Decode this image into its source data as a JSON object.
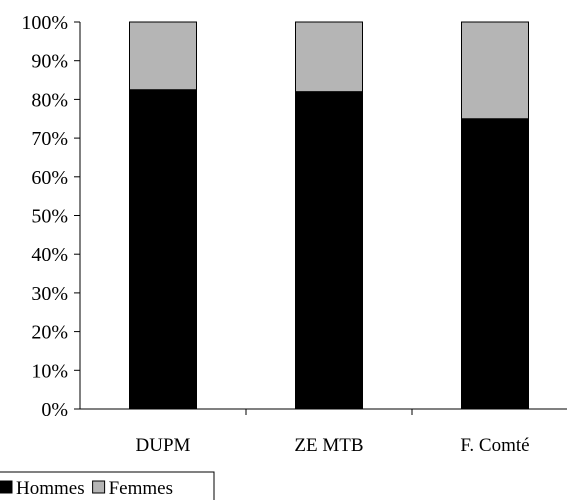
{
  "chart_data": {
    "type": "bar",
    "stacked": true,
    "percent": true,
    "title": "",
    "xlabel": "",
    "ylabel": "",
    "ylim": [
      0,
      100
    ],
    "yticks": [
      "0%",
      "10%",
      "20%",
      "30%",
      "40%",
      "50%",
      "60%",
      "70%",
      "80%",
      "90%",
      "100%"
    ],
    "categories": [
      "DUPM",
      "ZE MTB",
      "F. Comté"
    ],
    "series": [
      {
        "name": "Hommes",
        "values": [
          82.5,
          82,
          75
        ],
        "color": "#000000"
      },
      {
        "name": "Femmes",
        "values": [
          17.5,
          18,
          25
        ],
        "color": "#b5b5b5"
      }
    ],
    "legend": {
      "position": "bottom-left"
    },
    "grid": false
  }
}
